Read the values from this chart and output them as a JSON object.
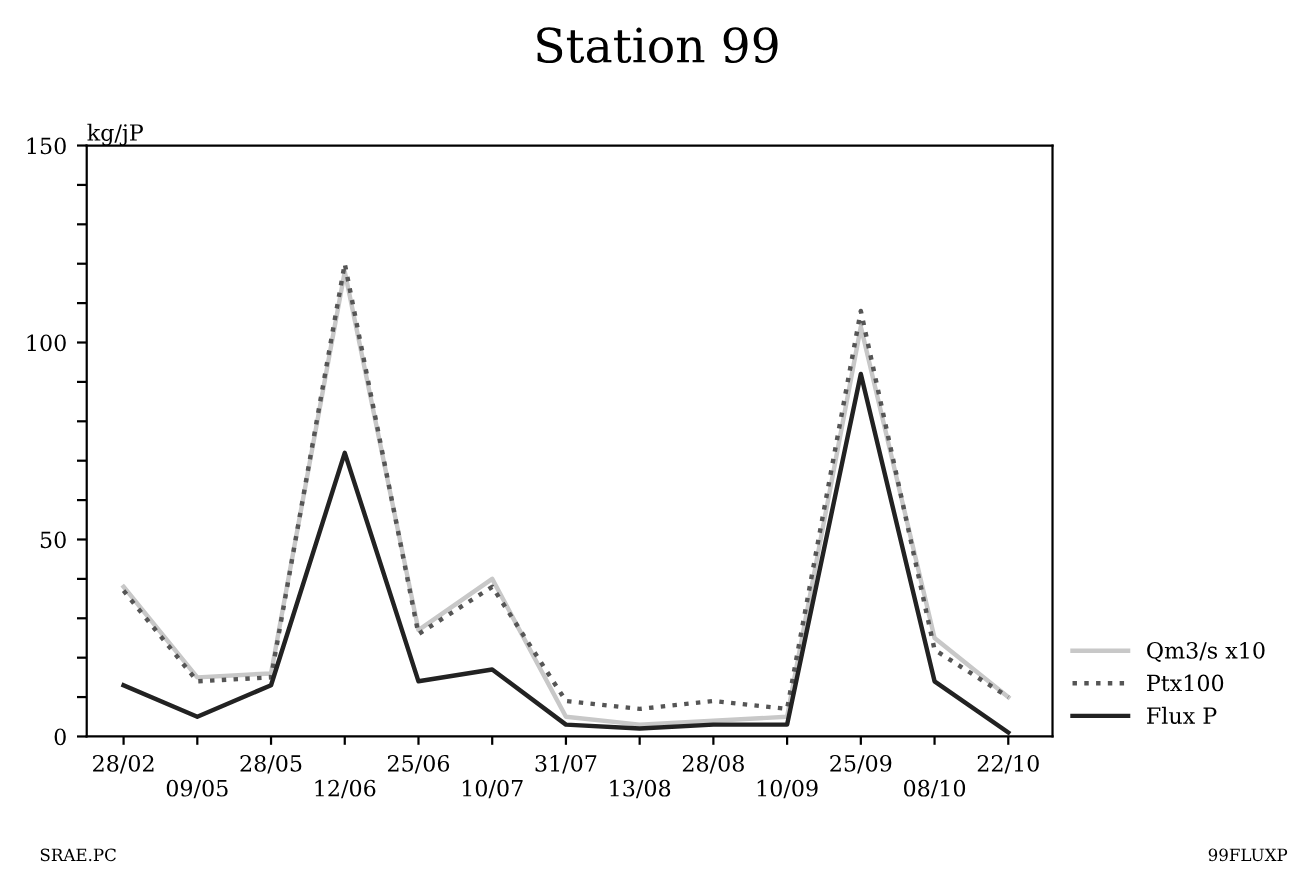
{
  "chart_data": {
    "type": "line",
    "title": "Station 99",
    "ylabel": "kg/jP",
    "categories": [
      "28/02",
      "09/05",
      "28/05",
      "12/06",
      "25/06",
      "10/07",
      "31/07",
      "13/08",
      "28/08",
      "10/09",
      "25/09",
      "08/10",
      "22/10"
    ],
    "series": [
      {
        "name": "Qm3/s x10",
        "color": "#c8c8c8",
        "line_style": "solid",
        "values": [
          38,
          15,
          16,
          118,
          27,
          40,
          5,
          3,
          4,
          5,
          104,
          25,
          10
        ]
      },
      {
        "name": "Ptx100",
        "color": "#555555",
        "line_style": "dotted",
        "values": [
          37,
          14,
          15,
          120,
          26,
          38,
          9,
          7,
          9,
          7,
          108,
          22,
          10
        ]
      },
      {
        "name": "Flux P",
        "color": "#222222",
        "line_style": "solid",
        "values": [
          13,
          5,
          13,
          72,
          14,
          17,
          3,
          2,
          3,
          3,
          92,
          14,
          1
        ]
      }
    ],
    "ylim": [
      0,
      150
    ],
    "yticks": [
      0,
      {
        "value": 10,
        "label": null
      },
      {
        "value": 20,
        "label": null
      },
      {
        "value": 30,
        "label": null
      },
      {
        "value": 40,
        "label": null
      },
      50,
      {
        "value": 60,
        "label": null
      },
      {
        "value": 70,
        "label": null
      },
      {
        "value": 80,
        "label": null
      },
      {
        "value": 90,
        "label": null
      },
      100,
      {
        "value": 110,
        "label": null
      },
      {
        "value": 120,
        "label": null
      },
      {
        "value": 130,
        "label": null
      },
      {
        "value": 140,
        "label": null
      },
      150
    ],
    "legend": "right",
    "grid": false,
    "marker": "none",
    "annotations": [
      "SRAE.PC",
      "99FLUXP"
    ]
  }
}
